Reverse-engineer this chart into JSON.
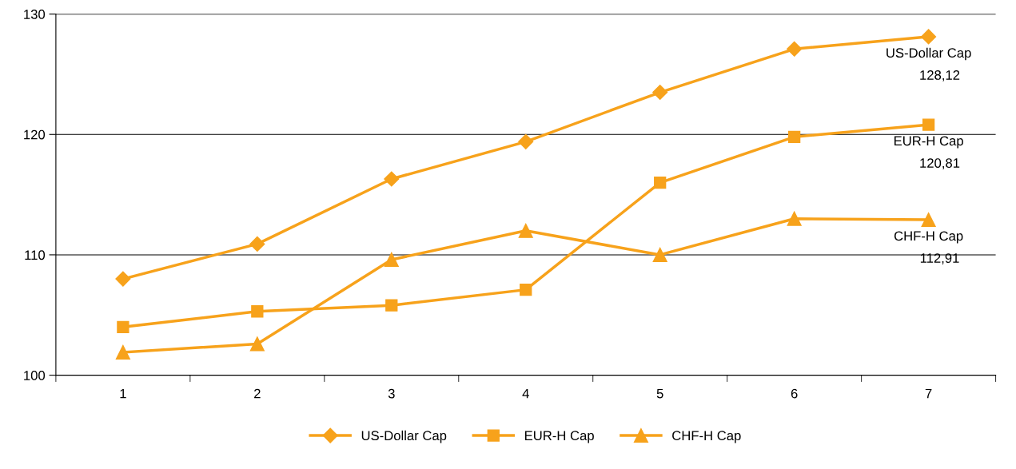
{
  "chart_data": {
    "type": "line",
    "categories": [
      "1",
      "2",
      "3",
      "4",
      "5",
      "6",
      "7"
    ],
    "series": [
      {
        "name": "US-Dollar Cap",
        "color": "#f7a21b",
        "marker": "diamond",
        "values": [
          108.0,
          110.9,
          116.3,
          119.4,
          123.5,
          127.1,
          128.12
        ],
        "value_labels": [
          null,
          null,
          null,
          null,
          null,
          null,
          "128,12"
        ]
      },
      {
        "name": "EUR-H Cap",
        "color": "#f7a21b",
        "marker": "square",
        "values": [
          104.0,
          105.3,
          105.8,
          107.1,
          116.0,
          119.8,
          120.81
        ],
        "value_labels": [
          null,
          null,
          null,
          null,
          null,
          null,
          "120,81"
        ]
      },
      {
        "name": "CHF-H Cap",
        "color": "#f7a21b",
        "marker": "triangle",
        "values": [
          101.9,
          102.6,
          109.6,
          112.0,
          110.0,
          113.0,
          112.91
        ],
        "value_labels": [
          null,
          null,
          null,
          null,
          null,
          null,
          "112,91"
        ]
      }
    ],
    "ylim": [
      100,
      130
    ],
    "yticks": [
      100,
      110,
      120,
      130
    ],
    "grid": "y",
    "legend": "bottom",
    "line_style": "solid"
  }
}
